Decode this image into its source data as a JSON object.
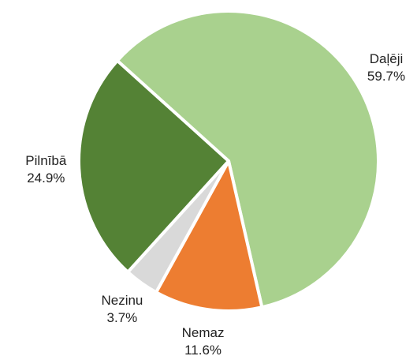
{
  "chart_data": {
    "type": "pie",
    "categories": [
      "Daļēji",
      "Nemaz",
      "Nezinu",
      "Pilnībā"
    ],
    "values": [
      59.7,
      11.6,
      3.7,
      24.9
    ],
    "value_labels": [
      "59.7%",
      "11.6%",
      "3.7%",
      "24.9%"
    ],
    "colors": [
      "#a9d18e",
      "#ed7d31",
      "#d9d9d9",
      "#548235"
    ]
  }
}
